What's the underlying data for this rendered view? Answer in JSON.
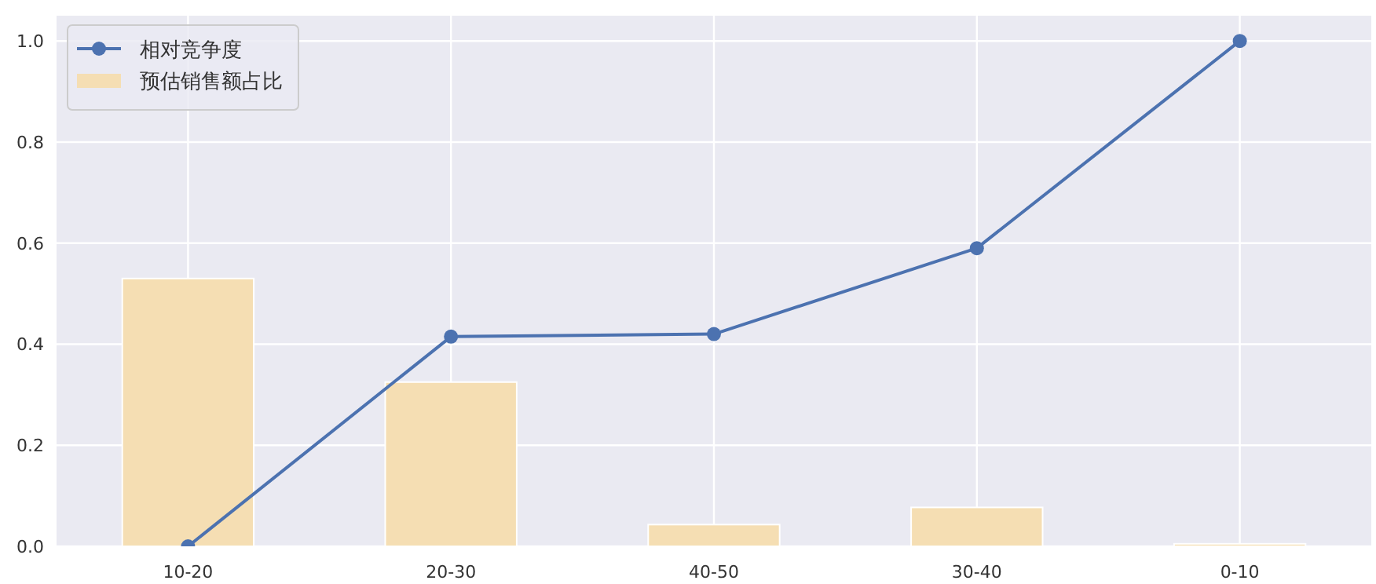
{
  "chart_data": {
    "type": "bar",
    "categories": [
      "10-20",
      "20-30",
      "40-50",
      "30-40",
      "0-10"
    ],
    "series": [
      {
        "name": "相对竞争度",
        "type": "line",
        "color": "#4c72b0",
        "values": [
          0.0,
          0.415,
          0.42,
          0.59,
          1.0
        ]
      },
      {
        "name": "预估销售额占比",
        "color": "#f5deb3",
        "values": [
          0.53,
          0.325,
          0.043,
          0.077,
          0.005
        ]
      }
    ],
    "ylim": [
      0,
      1.05
    ],
    "yticks": [
      {
        "value": 0,
        "label": "0.0"
      },
      {
        "value": 0.2,
        "label": "0.2"
      },
      {
        "value": 0.4,
        "label": "0.4"
      },
      {
        "value": 0.6,
        "label": "0.6"
      },
      {
        "value": 0.8,
        "label": "0.8"
      },
      {
        "value": 1.0,
        "label": "1.0"
      }
    ],
    "grid": true,
    "legend": "top left",
    "marker": "circle"
  }
}
